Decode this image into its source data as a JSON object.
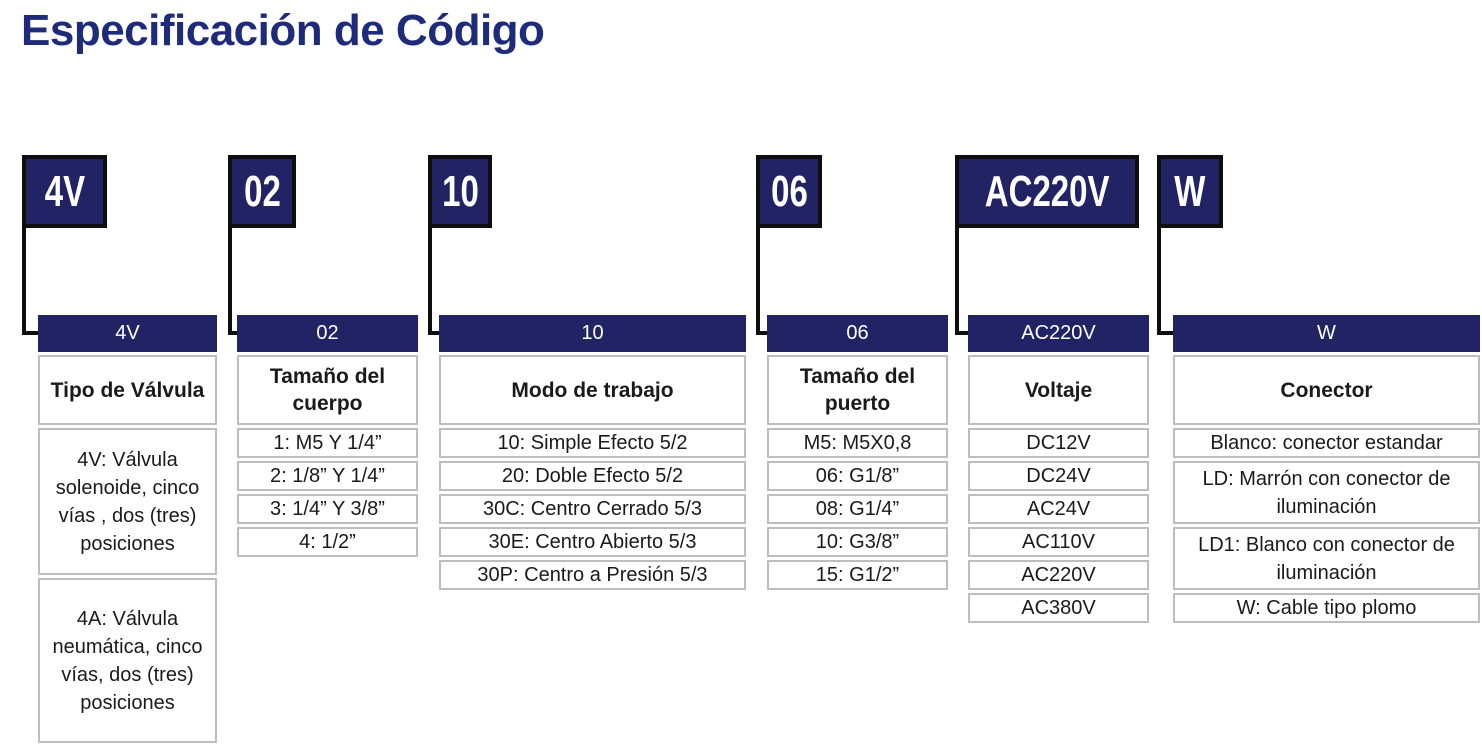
{
  "title": "Especificación de Código",
  "colors": {
    "navy": "#212365",
    "title_navy": "#1e2a7a",
    "line_black": "#0e0e0e",
    "cell_border_gray": "#bdbdbd",
    "text_dark": "#1a1a1a"
  },
  "columns": [
    {
      "code": "4V",
      "label": "Tipo de Válvula",
      "rows": [
        "4V: Válvula solenoide, cinco vías , dos (tres) posiciones",
        "4A: Válvula neumática, cinco vías, dos (tres) posiciones"
      ]
    },
    {
      "code": "02",
      "label": "Tamaño del cuerpo",
      "rows": [
        "1: M5 Y 1/4”",
        "2: 1/8” Y 1/4”",
        "3: 1/4” Y 3/8”",
        "4: 1/2”"
      ]
    },
    {
      "code": "10",
      "label": "Modo de trabajo",
      "rows": [
        "10: Simple Efecto 5/2",
        "20: Doble Efecto 5/2",
        "30C: Centro Cerrado 5/3",
        "30E: Centro Abierto 5/3",
        "30P: Centro a Presión  5/3"
      ]
    },
    {
      "code": "06",
      "label": "Tamaño del puerto",
      "rows": [
        "M5: M5X0,8",
        "06: G1/8”",
        "08: G1/4”",
        "10: G3/8”",
        "15: G1/2”"
      ]
    },
    {
      "code": "AC220V",
      "label": "Voltaje",
      "rows": [
        "DC12V",
        "DC24V",
        "AC24V",
        "AC110V",
        "AC220V",
        "AC380V"
      ]
    },
    {
      "code": "W",
      "label": "Conector",
      "rows": [
        "Blanco: conector estandar",
        "LD: Marrón con conector de iluminación",
        "LD1: Blanco con conector de iluminación",
        "W: Cable tipo plomo"
      ]
    }
  ]
}
